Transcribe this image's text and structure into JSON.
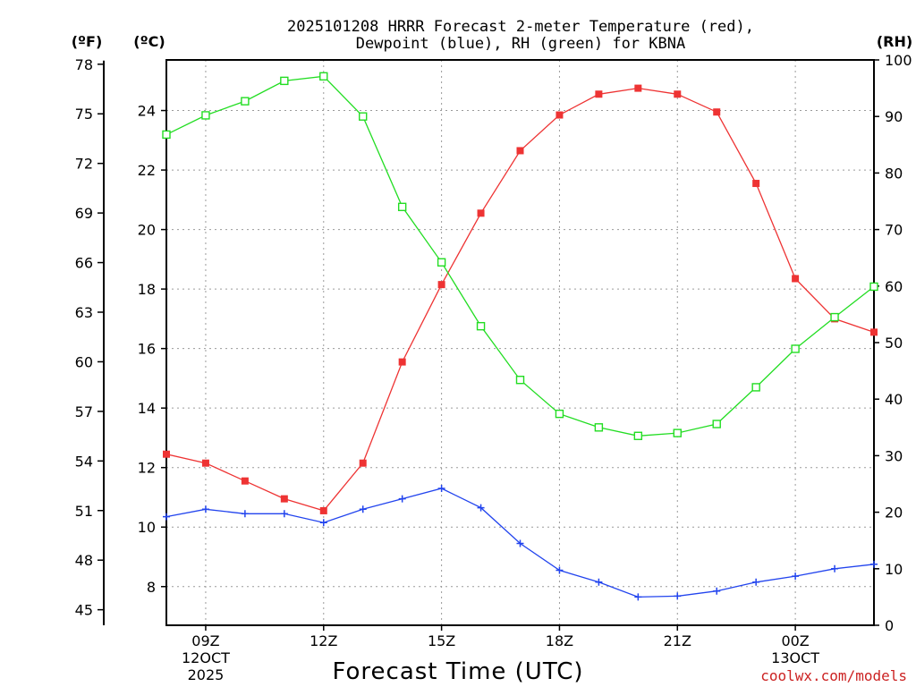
{
  "chart_data": {
    "type": "line",
    "title_line1": "2025101208 HRRR Forecast 2-meter Temperature (red),",
    "title_line2": "Dewpoint (blue), RH (green) for KBNA",
    "xlabel": "Forecast Time (UTC)",
    "units": {
      "fahrenheit": "(ºF)",
      "celsius": "(ºC)",
      "rh": "(RH)"
    },
    "credit": "coolwx.com/models",
    "x_hours": [
      8,
      9,
      10,
      11,
      12,
      13,
      14,
      15,
      16,
      17,
      18,
      19,
      20,
      21,
      22,
      23,
      24,
      25,
      26
    ],
    "xlim": [
      8,
      26
    ],
    "x_ticks": [
      {
        "hour": 9,
        "label": "09Z",
        "sub1": "12OCT",
        "sub2": "2025"
      },
      {
        "hour": 12,
        "label": "12Z"
      },
      {
        "hour": 15,
        "label": "15Z"
      },
      {
        "hour": 18,
        "label": "18Z"
      },
      {
        "hour": 21,
        "label": "21Z"
      },
      {
        "hour": 24,
        "label": "00Z",
        "sub1": "13OCT"
      }
    ],
    "celsius_axis": {
      "ylim": [
        6.7,
        25.7
      ],
      "ticks": [
        8,
        10,
        12,
        14,
        16,
        18,
        20,
        22,
        24
      ]
    },
    "fahrenheit_axis": {
      "ticks": [
        45,
        48,
        51,
        54,
        57,
        60,
        63,
        66,
        69,
        72,
        75,
        78
      ]
    },
    "rh_axis": {
      "ylim": [
        0,
        100
      ],
      "ticks": [
        0,
        10,
        20,
        30,
        40,
        50,
        60,
        70,
        80,
        90,
        100
      ]
    },
    "series": [
      {
        "name": "Temperature",
        "color": "#ee3333",
        "axis": "celsius",
        "marker": "filled-square",
        "values": [
          12.45,
          12.15,
          11.55,
          10.95,
          10.55,
          12.15,
          15.55,
          18.15,
          20.55,
          22.65,
          23.85,
          24.55,
          24.75,
          24.55,
          23.95,
          21.55,
          18.35,
          17.0,
          16.55
        ]
      },
      {
        "name": "Dewpoint",
        "color": "#2244ee",
        "axis": "celsius",
        "marker": "plus",
        "values": [
          10.35,
          10.6,
          10.45,
          10.45,
          10.15,
          10.6,
          10.95,
          11.3,
          10.65,
          9.45,
          8.55,
          8.15,
          7.65,
          7.68,
          7.85,
          8.15,
          8.35,
          8.6,
          8.75
        ]
      },
      {
        "name": "RH",
        "color": "#22dd22",
        "axis": "rh",
        "marker": "open-square",
        "values": [
          86.8,
          90.2,
          92.7,
          96.3,
          97.1,
          90.0,
          74.0,
          64.2,
          52.9,
          43.4,
          37.4,
          35.0,
          33.5,
          34.0,
          35.6,
          42.1,
          48.9,
          54.5,
          59.9
        ]
      }
    ]
  }
}
